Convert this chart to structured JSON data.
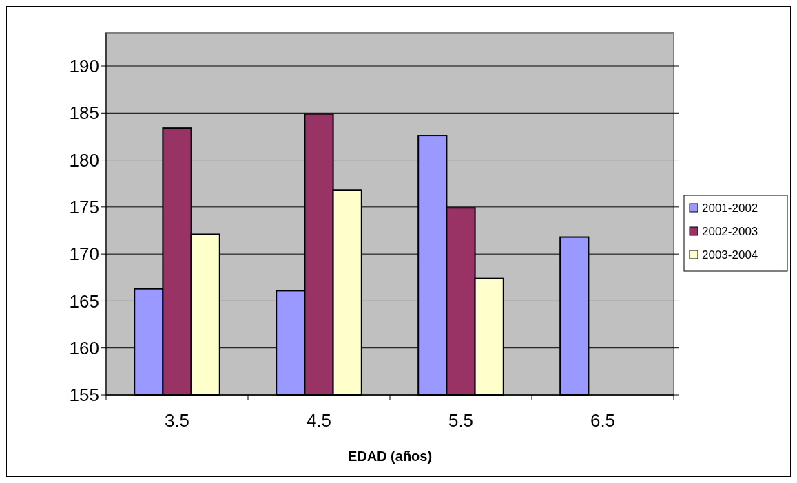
{
  "chart_data": {
    "type": "bar",
    "xlabel": "EDAD (años)",
    "categories": [
      "3.5",
      "4.5",
      "5.5",
      "6.5"
    ],
    "series": [
      {
        "name": "2001-2002",
        "color": "#9999ff",
        "values": [
          166.3,
          166.1,
          182.6,
          171.8
        ]
      },
      {
        "name": "2002-2003",
        "color": "#993366",
        "values": [
          183.4,
          184.9,
          174.9,
          null
        ]
      },
      {
        "name": "2003-2004",
        "color": "#ffffcc",
        "values": [
          172.1,
          176.8,
          167.4,
          null
        ]
      }
    ],
    "ylim": [
      155,
      190
    ],
    "yticks": [
      155,
      160,
      165,
      170,
      175,
      180,
      185,
      190
    ],
    "grid": "y",
    "legend": "right"
  }
}
